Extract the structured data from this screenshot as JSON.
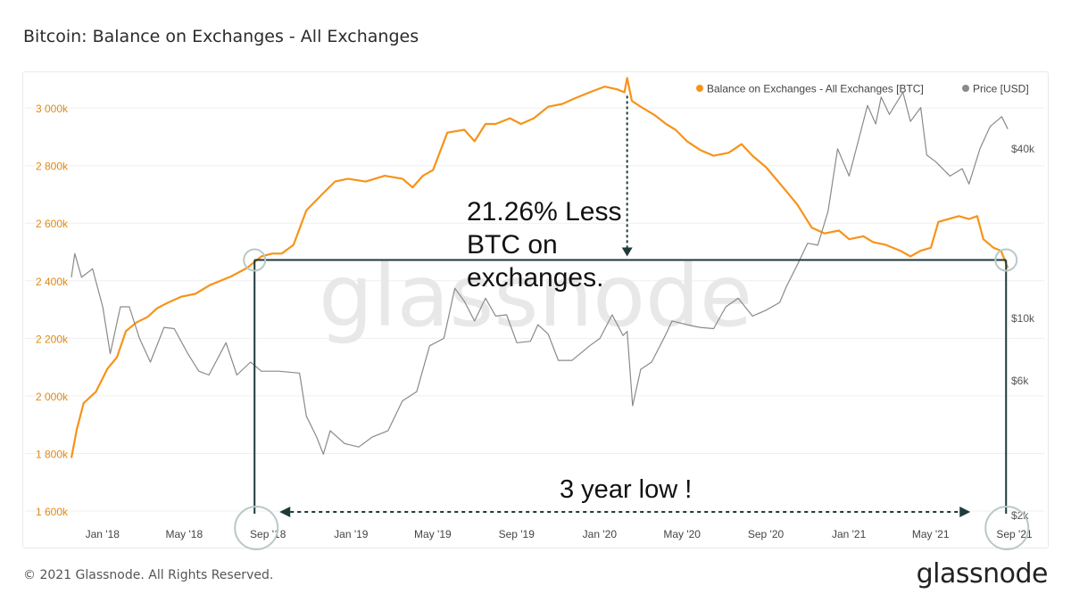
{
  "title": "Bitcoin: Balance on Exchanges - All Exchanges",
  "footer": "© 2021 Glassnode. All Rights Reserved.",
  "logo": "glassnode",
  "watermark": "glassnode",
  "colors": {
    "balance": "#f7931a",
    "price": "#8a8a8a",
    "annotation": "#1e3a3a"
  },
  "chart_data": {
    "type": "line",
    "title": "Bitcoin: Balance on Exchanges - All Exchanges",
    "legend": {
      "placement": "top-right",
      "items": [
        {
          "label": "Balance on Exchanges - All Exchanges [BTC]",
          "color": "#f7931a"
        },
        {
          "label": "Price [USD]",
          "color": "#8a8a8a"
        }
      ]
    },
    "x_ticks": [
      "Jan '18",
      "May '18",
      "Sep '18",
      "Jan '19",
      "May '19",
      "Sep '19",
      "Jan '20",
      "May '20",
      "Sep '20",
      "Jan '21",
      "May '21",
      "Sep '21"
    ],
    "x_tick_dates": [
      "2018-01-01",
      "2018-05-01",
      "2018-09-01",
      "2019-01-01",
      "2019-05-01",
      "2019-09-01",
      "2020-01-01",
      "2020-05-01",
      "2020-09-01",
      "2021-01-01",
      "2021-05-01",
      "2021-09-01"
    ],
    "y_left": {
      "ticks": [
        "1 600k",
        "1 800k",
        "2 000k",
        "2 200k",
        "2 400k",
        "2 600k",
        "2 800k",
        "3 000k"
      ],
      "tick_values": [
        1600000,
        1800000,
        2000000,
        2200000,
        2400000,
        2600000,
        2800000,
        3000000
      ],
      "range": [
        1600000,
        3050000
      ]
    },
    "y_right": {
      "scale": "log",
      "ticks": [
        "$2k",
        "$6k",
        "$10k",
        "$40k"
      ],
      "tick_values": [
        2000,
        6000,
        10000,
        40000
      ]
    },
    "grid": "horizontal",
    "series": [
      {
        "name": "Balance on Exchanges - All Exchanges [BTC]",
        "axis": "left",
        "points": [
          [
            "2017-12-10",
            1800000
          ],
          [
            "2017-12-18",
            1900000
          ],
          [
            "2017-12-28",
            1990000
          ],
          [
            "2018-01-15",
            2030000
          ],
          [
            "2018-02-01",
            2110000
          ],
          [
            "2018-02-15",
            2150000
          ],
          [
            "2018-02-28",
            2240000
          ],
          [
            "2018-03-15",
            2270000
          ],
          [
            "2018-04-01",
            2290000
          ],
          [
            "2018-04-15",
            2320000
          ],
          [
            "2018-05-01",
            2340000
          ],
          [
            "2018-05-20",
            2360000
          ],
          [
            "2018-06-10",
            2370000
          ],
          [
            "2018-07-01",
            2400000
          ],
          [
            "2018-08-01",
            2430000
          ],
          [
            "2018-08-25",
            2460000
          ],
          [
            "2018-09-15",
            2500000
          ],
          [
            "2018-10-01",
            2510000
          ],
          [
            "2018-10-15",
            2510000
          ],
          [
            "2018-11-01",
            2540000
          ],
          [
            "2018-11-20",
            2660000
          ],
          [
            "2018-12-15",
            2720000
          ],
          [
            "2019-01-01",
            2760000
          ],
          [
            "2019-01-20",
            2770000
          ],
          [
            "2019-02-15",
            2760000
          ],
          [
            "2019-03-15",
            2780000
          ],
          [
            "2019-04-10",
            2770000
          ],
          [
            "2019-04-25",
            2740000
          ],
          [
            "2019-05-10",
            2780000
          ],
          [
            "2019-05-25",
            2800000
          ],
          [
            "2019-06-15",
            2930000
          ],
          [
            "2019-07-10",
            2940000
          ],
          [
            "2019-07-25",
            2900000
          ],
          [
            "2019-08-10",
            2960000
          ],
          [
            "2019-08-25",
            2960000
          ],
          [
            "2019-09-15",
            2980000
          ],
          [
            "2019-10-01",
            2960000
          ],
          [
            "2019-10-20",
            2980000
          ],
          [
            "2019-11-10",
            3020000
          ],
          [
            "2019-12-01",
            3030000
          ],
          [
            "2019-12-20",
            3050000
          ],
          [
            "2020-01-10",
            3070000
          ],
          [
            "2020-02-01",
            3090000
          ],
          [
            "2020-02-20",
            3080000
          ],
          [
            "2020-03-01",
            3070000
          ],
          [
            "2020-03-05",
            3120000
          ],
          [
            "2020-03-12",
            3040000
          ],
          [
            "2020-03-25",
            3020000
          ],
          [
            "2020-04-15",
            2990000
          ],
          [
            "2020-05-01",
            2960000
          ],
          [
            "2020-05-15",
            2940000
          ],
          [
            "2020-06-01",
            2900000
          ],
          [
            "2020-06-20",
            2870000
          ],
          [
            "2020-07-10",
            2850000
          ],
          [
            "2020-08-01",
            2860000
          ],
          [
            "2020-08-20",
            2890000
          ],
          [
            "2020-09-05",
            2850000
          ],
          [
            "2020-09-25",
            2810000
          ],
          [
            "2020-10-20",
            2740000
          ],
          [
            "2020-11-10",
            2680000
          ],
          [
            "2020-12-01",
            2600000
          ],
          [
            "2020-12-20",
            2580000
          ],
          [
            "2021-01-10",
            2590000
          ],
          [
            "2021-01-25",
            2560000
          ],
          [
            "2021-02-15",
            2570000
          ],
          [
            "2021-03-01",
            2550000
          ],
          [
            "2021-03-20",
            2540000
          ],
          [
            "2021-04-10",
            2520000
          ],
          [
            "2021-04-25",
            2500000
          ],
          [
            "2021-05-10",
            2520000
          ],
          [
            "2021-05-25",
            2530000
          ],
          [
            "2021-06-05",
            2620000
          ],
          [
            "2021-06-20",
            2630000
          ],
          [
            "2021-07-05",
            2640000
          ],
          [
            "2021-07-20",
            2630000
          ],
          [
            "2021-08-01",
            2640000
          ],
          [
            "2021-08-10",
            2560000
          ],
          [
            "2021-08-25",
            2530000
          ],
          [
            "2021-09-05",
            2520000
          ],
          [
            "2021-09-15",
            2460000
          ]
        ]
      },
      {
        "name": "Price [USD]",
        "axis": "right",
        "points": [
          [
            "2017-12-10",
            14000
          ],
          [
            "2017-12-15",
            17000
          ],
          [
            "2017-12-25",
            14000
          ],
          [
            "2018-01-10",
            15000
          ],
          [
            "2018-01-25",
            11000
          ],
          [
            "2018-02-05",
            7500
          ],
          [
            "2018-02-20",
            11000
          ],
          [
            "2018-03-05",
            11000
          ],
          [
            "2018-03-20",
            8500
          ],
          [
            "2018-04-05",
            7000
          ],
          [
            "2018-04-25",
            9300
          ],
          [
            "2018-05-10",
            9200
          ],
          [
            "2018-05-30",
            7500
          ],
          [
            "2018-06-15",
            6500
          ],
          [
            "2018-06-30",
            6300
          ],
          [
            "2018-07-25",
            8200
          ],
          [
            "2018-08-10",
            6300
          ],
          [
            "2018-08-30",
            7000
          ],
          [
            "2018-09-15",
            6500
          ],
          [
            "2018-10-10",
            6500
          ],
          [
            "2018-11-10",
            6400
          ],
          [
            "2018-11-20",
            4500
          ],
          [
            "2018-12-05",
            3800
          ],
          [
            "2018-12-15",
            3300
          ],
          [
            "2018-12-25",
            4000
          ],
          [
            "2019-01-15",
            3600
          ],
          [
            "2019-02-05",
            3500
          ],
          [
            "2019-02-25",
            3800
          ],
          [
            "2019-03-20",
            4000
          ],
          [
            "2019-04-10",
            5100
          ],
          [
            "2019-05-01",
            5500
          ],
          [
            "2019-05-20",
            8000
          ],
          [
            "2019-06-10",
            8500
          ],
          [
            "2019-06-26",
            12800
          ],
          [
            "2019-07-10",
            11500
          ],
          [
            "2019-07-25",
            9800
          ],
          [
            "2019-08-10",
            11800
          ],
          [
            "2019-08-25",
            10200
          ],
          [
            "2019-09-10",
            10300
          ],
          [
            "2019-09-25",
            8200
          ],
          [
            "2019-10-15",
            8300
          ],
          [
            "2019-10-26",
            9500
          ],
          [
            "2019-11-10",
            8800
          ],
          [
            "2019-11-25",
            7100
          ],
          [
            "2019-12-15",
            7100
          ],
          [
            "2020-01-10",
            8000
          ],
          [
            "2020-01-25",
            8500
          ],
          [
            "2020-02-12",
            10300
          ],
          [
            "2020-02-28",
            8700
          ],
          [
            "2020-03-05",
            9000
          ],
          [
            "2020-03-13",
            4900
          ],
          [
            "2020-03-25",
            6600
          ],
          [
            "2020-04-10",
            7000
          ],
          [
            "2020-04-30",
            8700
          ],
          [
            "2020-05-10",
            9800
          ],
          [
            "2020-06-01",
            9500
          ],
          [
            "2020-06-20",
            9300
          ],
          [
            "2020-07-10",
            9200
          ],
          [
            "2020-07-28",
            11000
          ],
          [
            "2020-08-15",
            11800
          ],
          [
            "2020-09-05",
            10200
          ],
          [
            "2020-09-25",
            10700
          ],
          [
            "2020-10-15",
            11400
          ],
          [
            "2020-10-25",
            13000
          ],
          [
            "2020-11-10",
            15500
          ],
          [
            "2020-11-25",
            18500
          ],
          [
            "2020-12-10",
            18200
          ],
          [
            "2020-12-25",
            24000
          ],
          [
            "2021-01-08",
            40000
          ],
          [
            "2021-01-25",
            32000
          ],
          [
            "2021-02-10",
            45000
          ],
          [
            "2021-02-21",
            57000
          ],
          [
            "2021-03-05",
            49000
          ],
          [
            "2021-03-13",
            61000
          ],
          [
            "2021-03-25",
            53000
          ],
          [
            "2021-04-14",
            63500
          ],
          [
            "2021-04-25",
            50000
          ],
          [
            "2021-05-10",
            56000
          ],
          [
            "2021-05-19",
            38000
          ],
          [
            "2021-06-01",
            36000
          ],
          [
            "2021-06-22",
            32000
          ],
          [
            "2021-07-10",
            34000
          ],
          [
            "2021-07-20",
            30000
          ],
          [
            "2021-08-05",
            40000
          ],
          [
            "2021-08-20",
            48000
          ],
          [
            "2021-09-06",
            52000
          ],
          [
            "2021-09-15",
            47000
          ]
        ]
      }
    ],
    "annotations": [
      {
        "text_lines": [
          "21.26% Less",
          "BTC on",
          "exchanges."
        ]
      },
      {
        "text": "3 year low !"
      }
    ],
    "highlight_dates": [
      "2018-09-01",
      "2021-09-15"
    ]
  }
}
